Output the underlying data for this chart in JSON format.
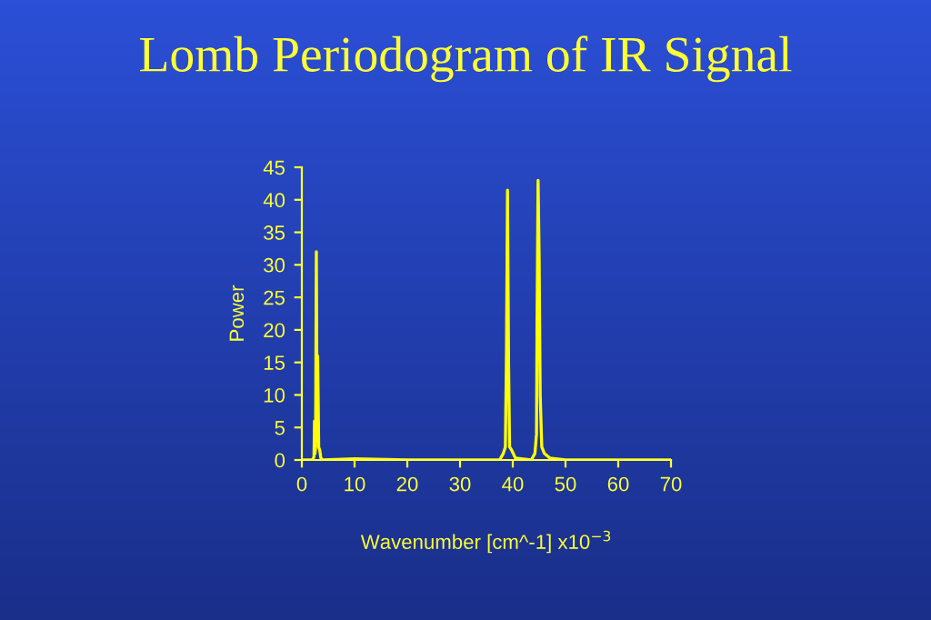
{
  "chart_data": {
    "type": "line",
    "title": "Lomb Periodogram of IR Signal",
    "xlabel": "Wavenumber [cm^-1] x10$^{−3}$",
    "ylabel": "Power",
    "series": [
      {
        "color": "#ffff00",
        "x": [
          0,
          2.0,
          2.3,
          2.4,
          2.5,
          2.6,
          2.75,
          2.9,
          3.0,
          3.2,
          3.4,
          3.6,
          4.0,
          10,
          20,
          37.5,
          38.2,
          38.6,
          38.8,
          39.0,
          39.2,
          39.4,
          39.8,
          40.5,
          43.5,
          44.2,
          44.5,
          44.6,
          44.8,
          45.0,
          45.2,
          45.5,
          46,
          47,
          50,
          70
        ],
        "values": [
          0,
          0,
          0.5,
          6,
          1,
          2,
          32,
          3,
          16,
          2,
          1.5,
          0.3,
          0,
          0.2,
          0,
          0,
          1,
          2,
          16,
          41.5,
          15,
          2,
          1.5,
          0.3,
          0,
          1,
          4,
          21,
          43,
          31,
          10,
          2,
          1,
          0.3,
          0,
          0
        ]
      }
    ],
    "xlim": [
      0,
      70
    ],
    "ylim": [
      0,
      45
    ],
    "xticks": [
      0,
      10,
      20,
      30,
      40,
      50,
      60,
      70
    ],
    "yticks": [
      0,
      5,
      10,
      15,
      20,
      25,
      30,
      35,
      40,
      45
    ],
    "grid": false,
    "legend": false
  }
}
